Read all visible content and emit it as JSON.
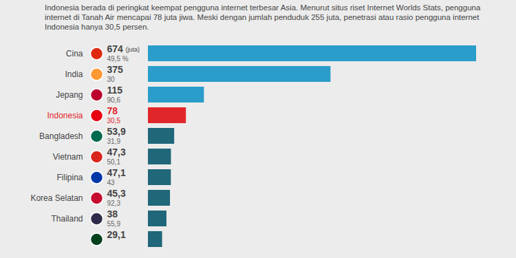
{
  "chart_data": {
    "type": "bar",
    "orientation": "horizontal",
    "subtitle": "Indonesia berada di peringkat keempat pengguna internet terbesar Asia. Menurut situs riset Internet Worlds Stats, pengguna internet di Tanah Air mencapai 78 juta jiwa. Meski dengan jumlah penduduk 255 juta, penetrasi atau rasio pengguna internet Indonesia hanya 30,5 persen.",
    "unit_label": "(juta)",
    "categories": [
      "Cina",
      "India",
      "Jepang",
      "Indonesia",
      "Bangladesh",
      "Vietnam",
      "Filipina",
      "Korea Selatan",
      "Thailand",
      null
    ],
    "values": [
      674,
      375,
      115,
      78,
      53.9,
      47.3,
      47.1,
      45.3,
      38,
      29.1
    ],
    "value_labels": [
      "674",
      "375",
      "115",
      "78",
      "53,9",
      "47,3",
      "47,1",
      "45,3",
      "38",
      "29,1"
    ],
    "penetration": [
      49.5,
      30,
      90.6,
      30.5,
      31.9,
      50.1,
      43,
      92.3,
      55.9,
      null
    ],
    "penetration_labels": [
      "49,5 %",
      "30",
      "90,6",
      "30,5",
      "31,9",
      "50,1",
      "43",
      "92,3",
      "55,9",
      null
    ],
    "colors": [
      "#2a9dca",
      "#2a9dca",
      "#2a9dca",
      "#e1262b",
      "#1f6779",
      "#1f6779",
      "#1f6779",
      "#1f6779",
      "#1f6779",
      "#1f6779"
    ],
    "xlim": [
      0,
      674
    ],
    "xticks": [],
    "grid": false,
    "tick_labels": "y",
    "data_labels": true
  }
}
